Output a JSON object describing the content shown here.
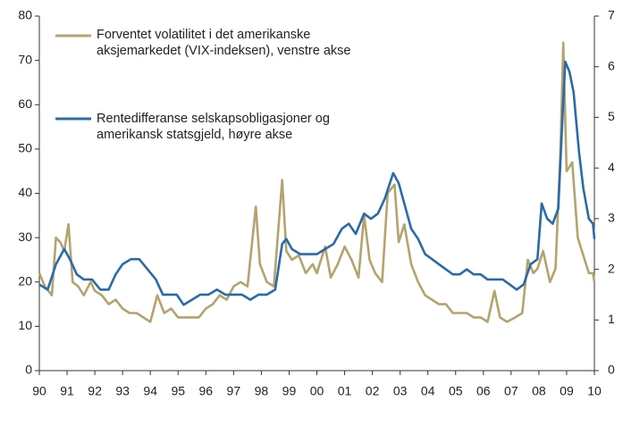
{
  "chart_data": {
    "type": "line",
    "xlim": [
      1990,
      2010
    ],
    "xticks": [
      {
        "value": 1990,
        "label": "90"
      },
      {
        "value": 1991,
        "label": "91"
      },
      {
        "value": 1992,
        "label": "92"
      },
      {
        "value": 1993,
        "label": "93"
      },
      {
        "value": 1994,
        "label": "94"
      },
      {
        "value": 1995,
        "label": "95"
      },
      {
        "value": 1996,
        "label": "96"
      },
      {
        "value": 1997,
        "label": "97"
      },
      {
        "value": 1998,
        "label": "98"
      },
      {
        "value": 1999,
        "label": "99"
      },
      {
        "value": 2000,
        "label": "00"
      },
      {
        "value": 2001,
        "label": "01"
      },
      {
        "value": 2002,
        "label": "02"
      },
      {
        "value": 2003,
        "label": "03"
      },
      {
        "value": 2004,
        "label": "04"
      },
      {
        "value": 2005,
        "label": "05"
      },
      {
        "value": 2006,
        "label": "06"
      },
      {
        "value": 2007,
        "label": "07"
      },
      {
        "value": 2008,
        "label": "08"
      },
      {
        "value": 2009,
        "label": "09"
      },
      {
        "value": 2010,
        "label": "10"
      }
    ],
    "ylim": [
      0,
      80
    ],
    "yticks": [
      0,
      10,
      20,
      30,
      40,
      50,
      60,
      70,
      80
    ],
    "y2lim": [
      0,
      7
    ],
    "y2ticks": [
      0,
      1,
      2,
      3,
      4,
      5,
      6,
      7
    ],
    "grid": false,
    "series": [
      {
        "name": "Forventet volatilitet i det amerikanske aksjemarkedet (VIX-indeksen), venstre akse",
        "color": "#b3a36f",
        "x": [
          1990.0,
          1990.2,
          1990.45,
          1990.6,
          1990.75,
          1990.9,
          1991.05,
          1991.2,
          1991.4,
          1991.6,
          1991.85,
          1992.0,
          1992.25,
          1992.5,
          1992.75,
          1993.0,
          1993.25,
          1993.5,
          1993.75,
          1994.0,
          1994.25,
          1994.5,
          1994.75,
          1995.0,
          1995.25,
          1995.5,
          1995.75,
          1996.0,
          1996.25,
          1996.5,
          1996.75,
          1997.0,
          1997.25,
          1997.5,
          1997.8,
          1997.95,
          1998.2,
          1998.45,
          1998.65,
          1998.75,
          1998.9,
          1999.1,
          1999.35,
          1999.6,
          1999.85,
          2000.0,
          2000.3,
          2000.5,
          2000.75,
          2001.0,
          2001.25,
          2001.5,
          2001.7,
          2001.9,
          2002.1,
          2002.35,
          2002.55,
          2002.8,
          2002.95,
          2003.15,
          2003.4,
          2003.65,
          2003.9,
          2004.15,
          2004.4,
          2004.65,
          2004.9,
          2005.15,
          2005.4,
          2005.65,
          2005.9,
          2006.15,
          2006.4,
          2006.6,
          2006.85,
          2007.15,
          2007.4,
          2007.6,
          2007.8,
          2007.95,
          2008.15,
          2008.4,
          2008.6,
          2008.78,
          2008.88,
          2009.0,
          2009.2,
          2009.4,
          2009.6,
          2009.8,
          2009.95,
          2010.0
        ],
        "values": [
          22,
          19,
          17,
          30,
          29,
          27,
          33,
          20,
          19,
          17,
          20,
          18,
          17,
          15,
          16,
          14,
          13,
          13,
          12,
          11,
          17,
          13,
          14,
          12,
          12,
          12,
          12,
          14,
          15,
          17,
          16,
          19,
          20,
          19,
          37,
          24,
          20,
          19,
          35,
          43,
          27,
          25,
          26,
          22,
          24,
          22,
          28,
          21,
          24,
          28,
          25,
          21,
          35,
          25,
          22,
          20,
          40,
          42,
          29,
          33,
          24,
          20,
          17,
          16,
          15,
          15,
          13,
          13,
          13,
          12,
          12,
          11,
          18,
          12,
          11,
          12,
          13,
          25,
          22,
          23,
          27,
          20,
          23,
          50,
          74,
          45,
          47,
          30,
          26,
          22,
          22,
          20
        ]
      },
      {
        "name": "Rentedifferanse selskapsobligasjoner og amerikansk statsgjeld, høyre akse",
        "color": "#2c6aa6",
        "axis": "y2",
        "x": [
          1990.0,
          1990.3,
          1990.6,
          1990.9,
          1991.1,
          1991.35,
          1991.6,
          1991.9,
          1992.2,
          1992.5,
          1992.75,
          1993.0,
          1993.3,
          1993.6,
          1993.9,
          1994.2,
          1994.45,
          1994.7,
          1994.95,
          1995.2,
          1995.5,
          1995.8,
          1996.1,
          1996.4,
          1996.7,
          1997.0,
          1997.3,
          1997.6,
          1997.9,
          1998.2,
          1998.5,
          1998.75,
          1998.9,
          1999.1,
          1999.4,
          1999.7,
          2000.0,
          2000.3,
          2000.6,
          2000.9,
          2001.15,
          2001.4,
          2001.7,
          2001.95,
          2002.2,
          2002.45,
          2002.75,
          2002.95,
          2003.15,
          2003.4,
          2003.65,
          2003.9,
          2004.15,
          2004.4,
          2004.65,
          2004.9,
          2005.15,
          2005.4,
          2005.65,
          2005.9,
          2006.15,
          2006.4,
          2006.7,
          2006.95,
          2007.2,
          2007.45,
          2007.7,
          2007.95,
          2008.1,
          2008.3,
          2008.5,
          2008.7,
          2008.85,
          2008.95,
          2009.1,
          2009.25,
          2009.45,
          2009.6,
          2009.8,
          2009.95,
          2010.0
        ],
        "values": [
          1.7,
          1.6,
          2.1,
          2.4,
          2.2,
          1.9,
          1.8,
          1.8,
          1.6,
          1.6,
          1.9,
          2.1,
          2.2,
          2.2,
          2.0,
          1.8,
          1.5,
          1.5,
          1.5,
          1.3,
          1.4,
          1.5,
          1.5,
          1.6,
          1.5,
          1.5,
          1.5,
          1.4,
          1.5,
          1.5,
          1.6,
          2.5,
          2.6,
          2.4,
          2.3,
          2.3,
          2.3,
          2.4,
          2.5,
          2.8,
          2.9,
          2.7,
          3.1,
          3.0,
          3.1,
          3.4,
          3.9,
          3.7,
          3.3,
          2.8,
          2.6,
          2.3,
          2.2,
          2.1,
          2.0,
          1.9,
          1.9,
          2.0,
          1.9,
          1.9,
          1.8,
          1.8,
          1.8,
          1.7,
          1.6,
          1.7,
          2.1,
          2.2,
          3.3,
          3.0,
          2.9,
          3.2,
          5.0,
          6.1,
          5.9,
          5.5,
          4.3,
          3.6,
          3.0,
          2.9,
          2.6
        ]
      }
    ]
  }
}
